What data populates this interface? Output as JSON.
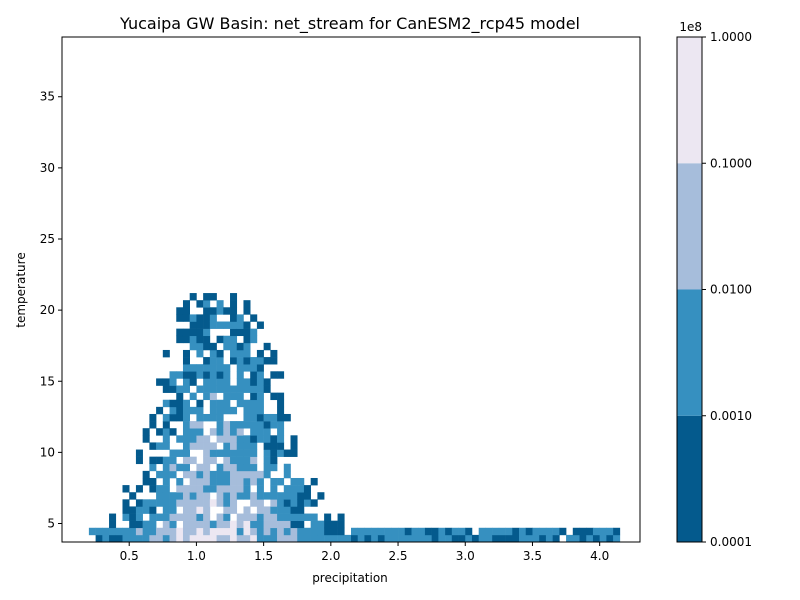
{
  "chart_data": {
    "type": "contour",
    "title": "Yucaipa GW Basin: net_stream for CanESM2_rcp45 model",
    "xlabel": "precipitation",
    "ylabel": "temperature",
    "xlim": [
      0.0,
      4.3
    ],
    "ylim": [
      3.7,
      39.2
    ],
    "x_ticks": [
      "0.5",
      "1.0",
      "1.5",
      "2.0",
      "2.5",
      "3.0",
      "3.5",
      "4.0"
    ],
    "y_ticks": [
      "5",
      "10",
      "15",
      "20",
      "25",
      "30",
      "35"
    ],
    "grid": false,
    "colorbar": {
      "multiplier_label": "1e8",
      "tick_labels": [
        "0.0001",
        "0.0010",
        "0.0100",
        "0.1000",
        "1.0000"
      ],
      "levels": [
        {
          "range": [
            0.0001,
            0.001
          ],
          "color": "#045a8d"
        },
        {
          "range": [
            0.001,
            0.01
          ],
          "color": "#3690c0"
        },
        {
          "range": [
            0.01,
            0.1
          ],
          "color": "#a6bddb"
        },
        {
          "range": [
            0.1,
            1.0
          ],
          "color": "#ece7f2"
        }
      ]
    }
  }
}
